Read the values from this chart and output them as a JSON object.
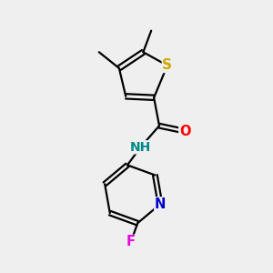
{
  "bg_color": "#efefef",
  "bond_color": "#000000",
  "bond_width": 1.6,
  "atom_colors": {
    "S": "#ccaa00",
    "N": "#0000cc",
    "O": "#ff0000",
    "F": "#ee00ee",
    "H": "#008888",
    "C": "#000000"
  },
  "font_size": 10.5
}
